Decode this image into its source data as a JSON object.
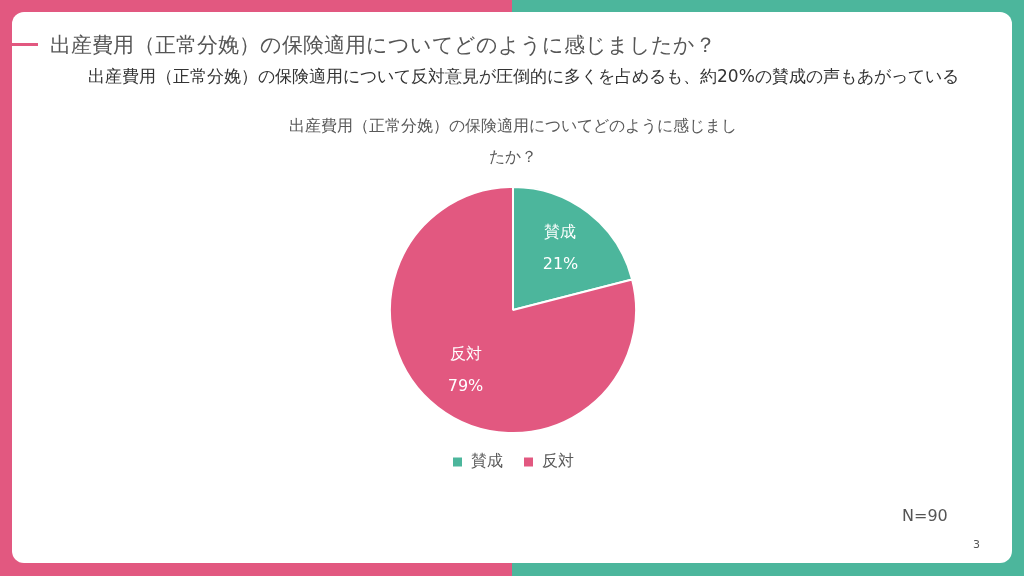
{
  "chart_data": {
    "type": "pie",
    "title": "出産費用（正常分娩）の保険適用についてどのように感じましたか？",
    "subtitle": "出産費用（正常分娩）の保険適用について反対意見が圧倒的に多くを占めるも、約20%の賛成の声もあがっている",
    "annotations": [
      "出産費用（正常分娩）の保険適用についてどのように感じましたか？",
      "N=90",
      "3"
    ],
    "categories": [
      "賛成",
      "反対"
    ],
    "values": [
      21,
      79
    ],
    "colors": [
      "#4cb69c",
      "#e25880"
    ],
    "value_labels": [
      "21%",
      "79%"
    ],
    "legend": "bottom"
  }
}
